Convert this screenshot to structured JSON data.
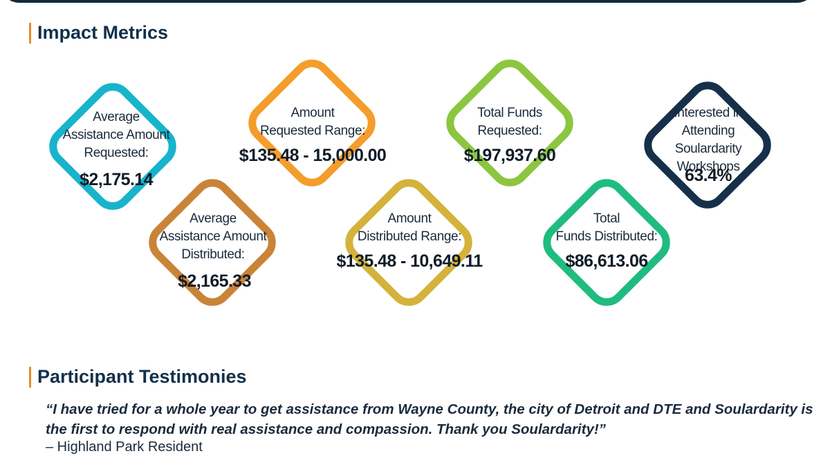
{
  "impact": {
    "title": "Impact Metrics",
    "metrics": [
      {
        "label": "Average\nAssistance Amount\nRequested:",
        "value": "$2,175.14",
        "color": "#18b3cc"
      },
      {
        "label": "Average\nAssistance Amount\nDistributed:",
        "value": "$2,165.33",
        "color": "#c98438"
      },
      {
        "label": "Amount\nRequested Range:",
        "value": "$135.48 - 15,000.00",
        "color": "#f49d2d"
      },
      {
        "label": "Amount\nDistributed Range:",
        "value": "$135.48 - 10,649.11",
        "color": "#d3b33b"
      },
      {
        "label": "Total Funds\nRequested:",
        "value": "$197,937.60",
        "color": "#8cc63f"
      },
      {
        "label": "Total\nFunds Distributed:",
        "value": "$86,613.06",
        "color": "#1fbc7f"
      },
      {
        "label": "Interested in\nAttending Soulardarity\nWorkshops",
        "value": "63.4%",
        "color": "#16304a"
      }
    ]
  },
  "testimonies": {
    "title": "Participant Testimonies",
    "quote": "“I have tried for a whole year to get assistance from Wayne County, the city of Detroit and DTE and Soulardarity is the first to respond with real assistance and compassion. Thank you Soulardarity!”",
    "attribution": "– Highland Park Resident"
  }
}
